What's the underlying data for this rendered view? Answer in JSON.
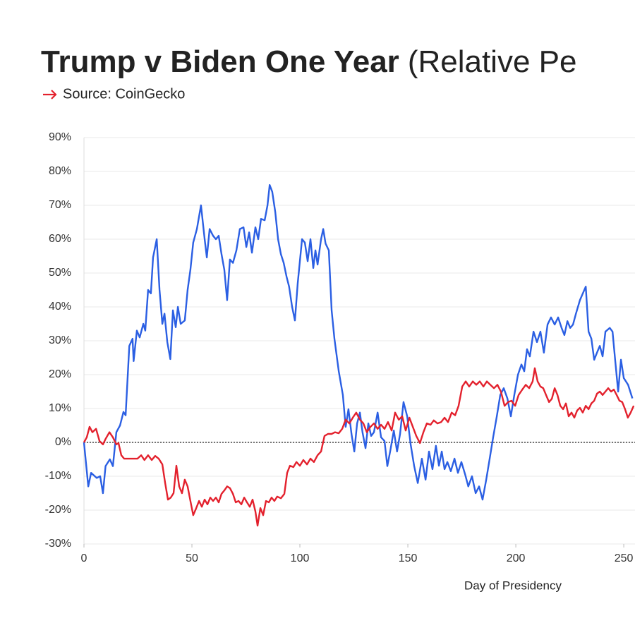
{
  "chart_data": {
    "type": "line",
    "title": "Trump v Biden One Year",
    "title_suffix": "(Relative Pe",
    "subtitle": "Source: CoinGecko",
    "xlabel": "Day of Presidency",
    "xlim": [
      0,
      255.2
    ],
    "ylim": [
      -30,
      90
    ],
    "xticks": [
      0,
      50,
      100,
      150,
      200,
      250
    ],
    "yticks": [
      {
        "value": -30,
        "label": "-30%"
      },
      {
        "value": -20,
        "label": "-20%"
      },
      {
        "value": -10,
        "label": "-10%"
      },
      {
        "value": 0,
        "label": "0%"
      },
      {
        "value": 10,
        "label": "10%"
      },
      {
        "value": 20,
        "label": "20%"
      },
      {
        "value": 30,
        "label": "30%"
      },
      {
        "value": 40,
        "label": "40%"
      },
      {
        "value": 50,
        "label": "50%"
      },
      {
        "value": 60,
        "label": "60%"
      },
      {
        "value": 70,
        "label": "70%"
      },
      {
        "value": 80,
        "label": "80%"
      },
      {
        "value": 90,
        "label": "90%"
      }
    ],
    "grid": true,
    "zero_line": true,
    "series": [
      {
        "color": "#2b5fe3",
        "x": [
          0,
          2,
          3.3,
          5.9,
          7.5,
          8.8,
          10,
          12,
          13.4,
          15,
          16.7,
          18.3,
          19.3,
          21,
          22.5,
          23,
          24.5,
          25.8,
          27.5,
          28.4,
          29.7,
          31,
          32,
          33.7,
          35,
          36.3,
          37.3,
          38.6,
          40,
          41.2,
          42.5,
          43.5,
          44.8,
          46.7,
          48,
          49.3,
          50.6,
          52.3,
          54.2,
          55.9,
          56.9,
          58.2,
          59.8,
          61.1,
          62.4,
          63.7,
          65,
          66.3,
          67.6,
          69,
          70.6,
          72.2,
          73.9,
          75.2,
          76.5,
          77.8,
          79.4,
          80.7,
          82,
          83.7,
          85,
          86,
          87.2,
          88.6,
          89.9,
          91.2,
          92.5,
          93.8,
          95,
          96.4,
          97.7,
          99,
          101,
          102.3,
          103.6,
          104.9,
          106.2,
          107.2,
          108.2,
          109.8,
          110.8,
          111.9,
          113.4,
          114.7,
          116,
          118,
          119.9,
          121.2,
          122.5,
          123.9,
          125.2,
          126.5,
          127.8,
          129,
          130.4,
          131.7,
          133,
          134.3,
          136,
          137.6,
          139.2,
          140.5,
          141.8,
          143.5,
          145,
          146.4,
          148,
          149.7,
          151.3,
          152.9,
          154.6,
          156.5,
          158.2,
          159.8,
          161.4,
          163,
          164.4,
          165.7,
          167,
          168.3,
          169.9,
          171.6,
          173.2,
          174.8,
          176.5,
          178,
          179.7,
          181.4,
          183,
          184.6,
          186.3,
          187.9,
          189.5,
          191.2,
          192.8,
          194.4,
          196.1,
          197.7,
          199.3,
          201,
          202.6,
          203.9,
          205.2,
          206.5,
          208.2,
          209.8,
          211.4,
          213,
          214.7,
          216.3,
          218,
          219.6,
          221.2,
          222.5,
          223.9,
          225.2,
          226.5,
          227.8,
          229.7,
          232.4,
          233.7,
          235,
          236.3,
          237.6,
          238.9,
          240.2,
          241.5,
          243.5,
          244.8,
          246,
          247.4,
          248.7,
          250,
          252,
          254
        ],
        "values": [
          0,
          -13,
          -9,
          -10.5,
          -10,
          -15,
          -7,
          -5,
          -7,
          3,
          5,
          9,
          8,
          28.5,
          30.6,
          24,
          33,
          31,
          35,
          33,
          45,
          44,
          54.6,
          60,
          45,
          35,
          38,
          29.6,
          24.6,
          39,
          34,
          40,
          35,
          36,
          45,
          51,
          59,
          63,
          70,
          60,
          54.6,
          63,
          61,
          60,
          61,
          55.6,
          51,
          42,
          54,
          53,
          56.7,
          63,
          63.5,
          57.7,
          62,
          56,
          63.5,
          60,
          66,
          65.6,
          70,
          76,
          74,
          68,
          60,
          55.6,
          53,
          49,
          46,
          40,
          36,
          47,
          60,
          59,
          53.5,
          60,
          51.5,
          56.7,
          52.5,
          60,
          63,
          58.7,
          56.7,
          39,
          30.6,
          21,
          14,
          4.6,
          9.8,
          2.5,
          -2.7,
          5.6,
          8.8,
          3,
          -1.7,
          5.6,
          1.9,
          3,
          8.8,
          1.5,
          0.4,
          -7,
          -2.7,
          3.5,
          -2.7,
          2.5,
          11.9,
          7.7,
          -0.6,
          -6.9,
          -12,
          -4.8,
          -11,
          -2.7,
          -7.9,
          -1,
          -6.9,
          -2.7,
          -7.9,
          -5.8,
          -8.5,
          -4.8,
          -9,
          -5.8,
          -9.4,
          -13,
          -10,
          -15,
          -13,
          -16.9,
          -11,
          -4.8,
          1.5,
          7.7,
          14,
          16,
          13,
          7.7,
          14,
          20,
          23,
          21,
          27.5,
          25.4,
          32.7,
          29.6,
          32.7,
          26.5,
          34.8,
          36.9,
          34.8,
          36.9,
          33.8,
          31.7,
          35.8,
          33.8,
          34.8,
          37.9,
          42,
          46,
          32.7,
          30.6,
          24.4,
          26.5,
          28.5,
          25.4,
          32.7,
          33.8,
          32.7,
          24.4,
          15,
          24.4,
          19,
          17,
          13
        ]
      },
      {
        "color": "#e3212d",
        "x": [
          0,
          1.3,
          2.6,
          3.9,
          5.6,
          7.2,
          8.8,
          10,
          11.8,
          13.4,
          15,
          16,
          17.3,
          18.6,
          21.6,
          24.8,
          26.5,
          28,
          29.7,
          31.4,
          33,
          34.6,
          36.3,
          37.6,
          38.9,
          40.2,
          41.5,
          42.8,
          44.1,
          45.4,
          46.7,
          48,
          49.3,
          50.6,
          52,
          53.3,
          54.6,
          55.9,
          57.2,
          58.5,
          59.8,
          61.1,
          62.4,
          63.7,
          65,
          66.3,
          67.6,
          69,
          70.3,
          71.6,
          72.9,
          74.2,
          75.5,
          76.8,
          78.1,
          79.4,
          80.4,
          81.7,
          83,
          84.3,
          85.6,
          86.9,
          88.2,
          89.5,
          91.2,
          92.8,
          94.1,
          95.4,
          97,
          98.4,
          100,
          101.6,
          103.3,
          104.9,
          106.5,
          108.2,
          109.8,
          111.4,
          113,
          114.7,
          116.3,
          118,
          119.6,
          121.2,
          122.9,
          124.5,
          126.1,
          127.8,
          129.4,
          131,
          132.7,
          134.3,
          136,
          137.6,
          139.2,
          140.8,
          142.5,
          144.1,
          145.8,
          147.4,
          149,
          150.7,
          152.3,
          153.9,
          155.6,
          157.2,
          158.8,
          160.5,
          162,
          163.7,
          165.4,
          167,
          168.6,
          170.3,
          171.9,
          173.5,
          175.2,
          176.8,
          178.4,
          180.1,
          181.7,
          183.3,
          185,
          186.6,
          188.2,
          189.9,
          191.5,
          193.1,
          194.8,
          196.4,
          198,
          199.7,
          201.3,
          203,
          204.6,
          206.2,
          207.8,
          208.8,
          210.1,
          211.4,
          212.7,
          214,
          215.4,
          216.7,
          218,
          219.3,
          220.6,
          221.9,
          223.2,
          224.5,
          225.8,
          227.1,
          228.4,
          229.7,
          231,
          232.4,
          233.7,
          235,
          236.3,
          237.6,
          238.9,
          240.2,
          241.5,
          242.8,
          244.1,
          245.4,
          246.7,
          248,
          249.3,
          250.6,
          251.9,
          253.2,
          254.6
        ],
        "values": [
          0,
          1.5,
          4.6,
          3,
          4,
          0.4,
          -0.6,
          1,
          3,
          1.5,
          -0.6,
          -0.2,
          -3.8,
          -4.8,
          -4.8,
          -4.8,
          -3.8,
          -5.2,
          -3.8,
          -5.2,
          -4,
          -4.8,
          -6.5,
          -12,
          -16.9,
          -16.3,
          -15,
          -6.9,
          -13,
          -15,
          -11,
          -13,
          -17.3,
          -21.5,
          -19.4,
          -17.3,
          -19,
          -16.9,
          -18.3,
          -16.3,
          -17.3,
          -16.3,
          -17.7,
          -15.2,
          -14.2,
          -13,
          -13.5,
          -15.2,
          -17.7,
          -17.3,
          -18.3,
          -16.3,
          -17.7,
          -19,
          -16.9,
          -20.4,
          -24.6,
          -19.4,
          -21.5,
          -17.3,
          -17.7,
          -16.3,
          -17.3,
          -16,
          -16.5,
          -15.2,
          -9,
          -6.9,
          -7.3,
          -5.8,
          -6.9,
          -5.2,
          -6.5,
          -4.8,
          -5.8,
          -3.8,
          -2.7,
          1.9,
          2.5,
          2.5,
          3,
          2.7,
          4,
          6.7,
          5.6,
          7.3,
          8.8,
          6.7,
          5.6,
          3,
          4.6,
          5.6,
          4,
          5.2,
          4,
          6,
          3.5,
          8.8,
          6.7,
          7.7,
          3.5,
          7.3,
          4.6,
          1.9,
          -0.2,
          3,
          5.6,
          5.2,
          6.5,
          5.6,
          6,
          7.3,
          6,
          8.8,
          8,
          10.8,
          16.5,
          18,
          16.5,
          18,
          17,
          18,
          16.5,
          18,
          17,
          16,
          17,
          15,
          10.8,
          11.9,
          12.3,
          10.8,
          14,
          15.6,
          17,
          16,
          18,
          21.9,
          18,
          16.5,
          16,
          14,
          11.9,
          12.9,
          16,
          14,
          10.8,
          9.8,
          11.5,
          7.7,
          8.8,
          7.3,
          9.4,
          10.2,
          8.8,
          10.8,
          9.8,
          11.5,
          12.3,
          14.4,
          15,
          14,
          15,
          16,
          15,
          15.6,
          14,
          12.3,
          11.9,
          9.8,
          7.3,
          8.8,
          10.8
        ]
      }
    ]
  }
}
